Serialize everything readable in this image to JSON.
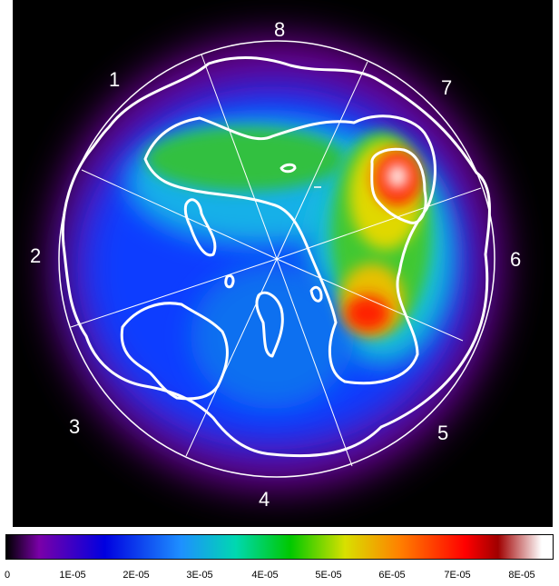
{
  "image": {
    "sector_labels": [
      "1",
      "2",
      "3",
      "4",
      "5",
      "6",
      "7",
      "8"
    ],
    "colorbar": {
      "tick_labels": [
        "0",
        "1E-05",
        "2E-05",
        "3E-05",
        "4E-05",
        "5E-05",
        "6E-05",
        "7E-05",
        "8E-05"
      ],
      "colors": [
        "#000000",
        "#7a00a8",
        "#0000e0",
        "#1e90ff",
        "#00d8b0",
        "#00c800",
        "#d8e000",
        "#ff8000",
        "#ff0000",
        "#a00000",
        "#ffffff"
      ]
    },
    "colors": {
      "background": "#000000",
      "circle": "#ffffff",
      "contour": "#ffffff"
    }
  }
}
